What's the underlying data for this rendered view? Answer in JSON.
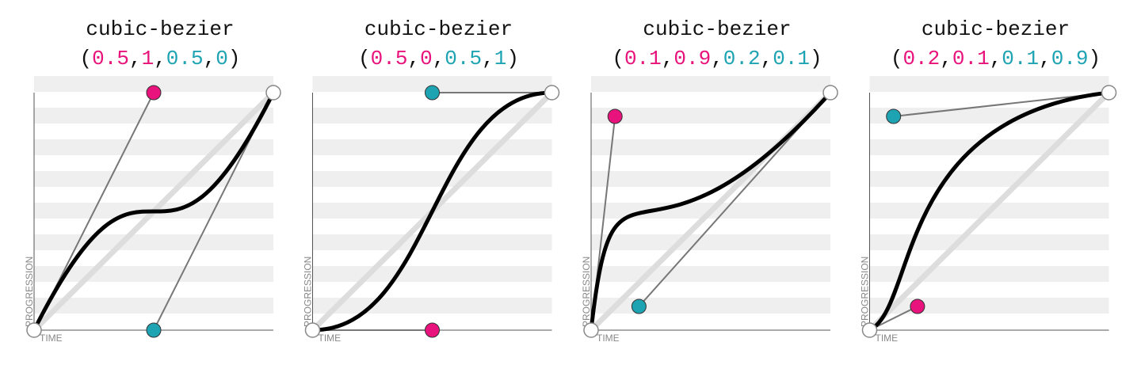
{
  "panels": [
    {
      "title": "cubic-bezier",
      "params": [
        0.5,
        1,
        0.5,
        0
      ]
    },
    {
      "title": "cubic-bezier",
      "params": [
        0.5,
        0,
        0.5,
        1
      ]
    },
    {
      "title": "cubic-bezier",
      "params": [
        0.1,
        0.9,
        0.2,
        0.1
      ]
    },
    {
      "title": "cubic-bezier",
      "params": [
        0.2,
        0.1,
        0.1,
        0.9
      ]
    }
  ],
  "punctuation": {
    "open": "(",
    "separator": ",",
    "close": ")"
  },
  "axis_labels": {
    "x": "TIME",
    "y": "PROGRESSION"
  },
  "colors": {
    "first_point": "#e8137c",
    "second_point": "#1ea3b3"
  }
}
